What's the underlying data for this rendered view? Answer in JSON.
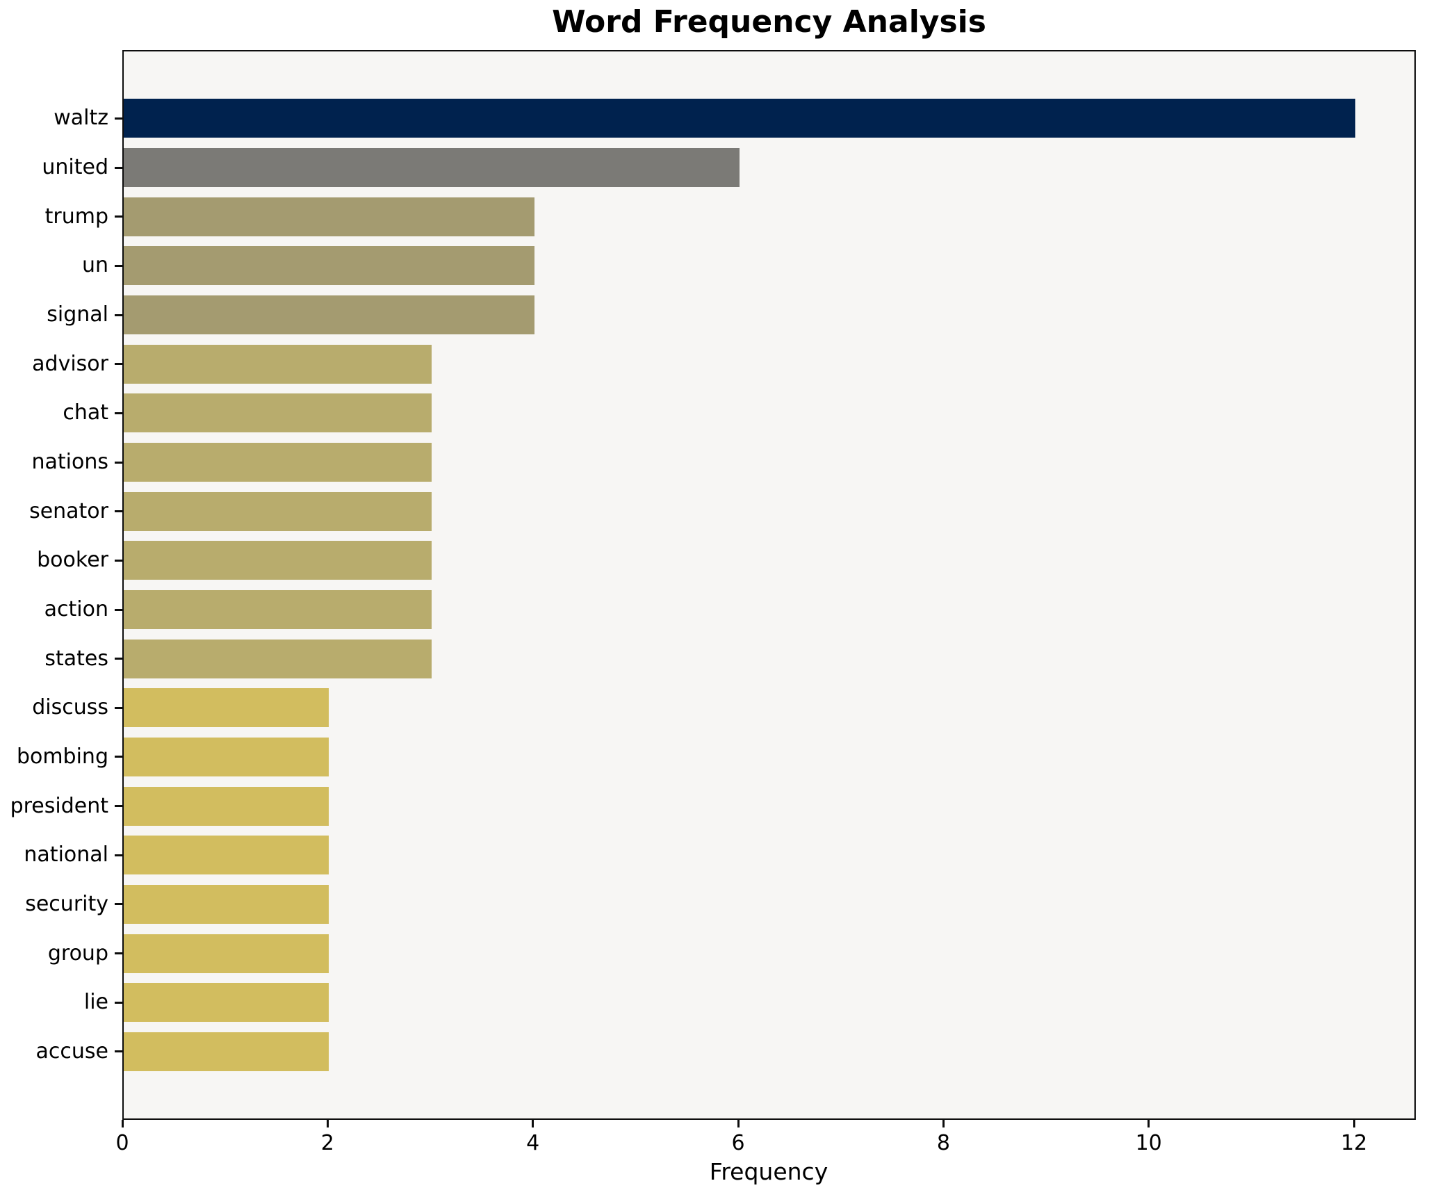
{
  "title": "Word Frequency Analysis",
  "chart_data": {
    "type": "bar",
    "orientation": "horizontal",
    "title": "Word Frequency Analysis",
    "xlabel": "Frequency",
    "ylabel": "",
    "categories": [
      "waltz",
      "united",
      "trump",
      "un",
      "signal",
      "advisor",
      "chat",
      "nations",
      "senator",
      "booker",
      "action",
      "states",
      "discuss",
      "bombing",
      "president",
      "national",
      "security",
      "group",
      "lie",
      "accuse"
    ],
    "values": [
      12,
      6,
      4,
      4,
      4,
      3,
      3,
      3,
      3,
      3,
      3,
      3,
      2,
      2,
      2,
      2,
      2,
      2,
      2,
      2
    ],
    "bar_colors": [
      "#00224e",
      "#7b7a76",
      "#a49b70",
      "#a49b70",
      "#a49b70",
      "#b8ac6d",
      "#b8ac6d",
      "#b8ac6d",
      "#b8ac6d",
      "#b8ac6d",
      "#b8ac6d",
      "#b8ac6d",
      "#d2bd5f",
      "#d2bd5f",
      "#d2bd5f",
      "#d2bd5f",
      "#d2bd5f",
      "#d2bd5f",
      "#d2bd5f",
      "#d2bd5f"
    ],
    "xticks": [
      0,
      2,
      4,
      6,
      8,
      10,
      12
    ],
    "xlim": [
      0,
      12.6
    ],
    "grid": false,
    "legend_position": "none",
    "colors": {
      "plot_background": "#f7f6f4",
      "page_background": "#ffffff",
      "spine_color": "#0d0d0d",
      "text_color": "#000000"
    }
  }
}
